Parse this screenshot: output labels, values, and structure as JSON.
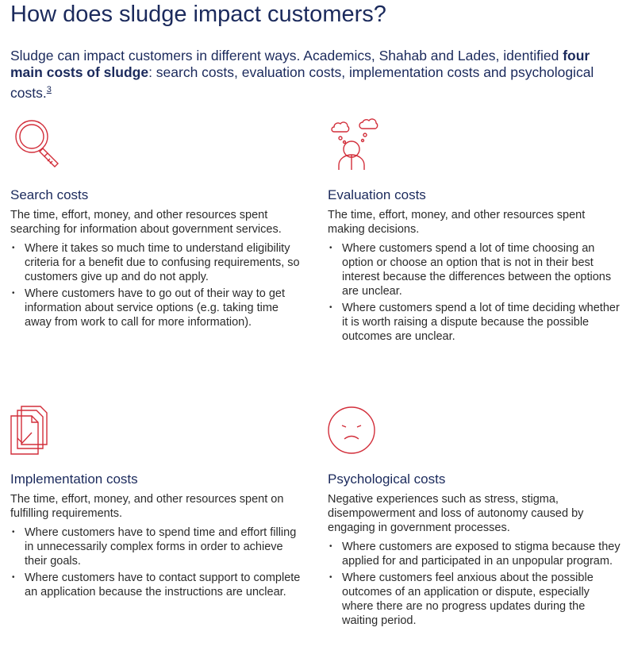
{
  "header": {
    "title": "How does sludge impact customers?"
  },
  "intro": {
    "text_before": "Sludge can impact customers in different ways. Academics, Shahab and Lades, identified",
    "bold": "four main costs of sludge",
    "text_after": ": search costs, evaluation costs, implementation costs and psychological costs.",
    "footnote": "3"
  },
  "sections": [
    {
      "heading": "Search costs",
      "description": "The time, effort, money, and other resources spent searching for information about government services.",
      "bullets": [
        "Where it takes so much time to understand eligibility criteria for a benefit due to confusing requirements, so customers give up and do not apply.",
        "Where customers have to go out of their way to get information about service options (e.g. taking time away from work to call for more information)."
      ]
    },
    {
      "heading": "Evaluation costs",
      "description": "The time, effort, money, and other resources spent making decisions.",
      "bullets": [
        "Where customers spend a lot of time choosing an option or choose an option that is not in their best interest because the differences between the options are unclear.",
        "Where customers spend a lot of time deciding whether it is worth raising a dispute because the possible outcomes are unclear."
      ]
    },
    {
      "heading": "Implementation costs",
      "description": "The time, effort, money, and other resources spent on fulfilling requirements.",
      "bullets": [
        "Where customers have to spend time and effort filling in unnecessarily complex forms in order to achieve their goals.",
        "Where customers have to contact support to complete an application because the instructions are unclear."
      ]
    },
    {
      "heading": "Psychological costs",
      "description": "Negative experiences such as stress, stigma, disempowerment and loss of autonomy caused by engaging in government processes.",
      "bullets": [
        "Where customers are exposed to stigma because they applied for and participated in an unpopular program.",
        "Where customers feel anxious about the possible outcomes of an application or dispute, especially where there are no progress updates during the waiting period."
      ]
    }
  ]
}
